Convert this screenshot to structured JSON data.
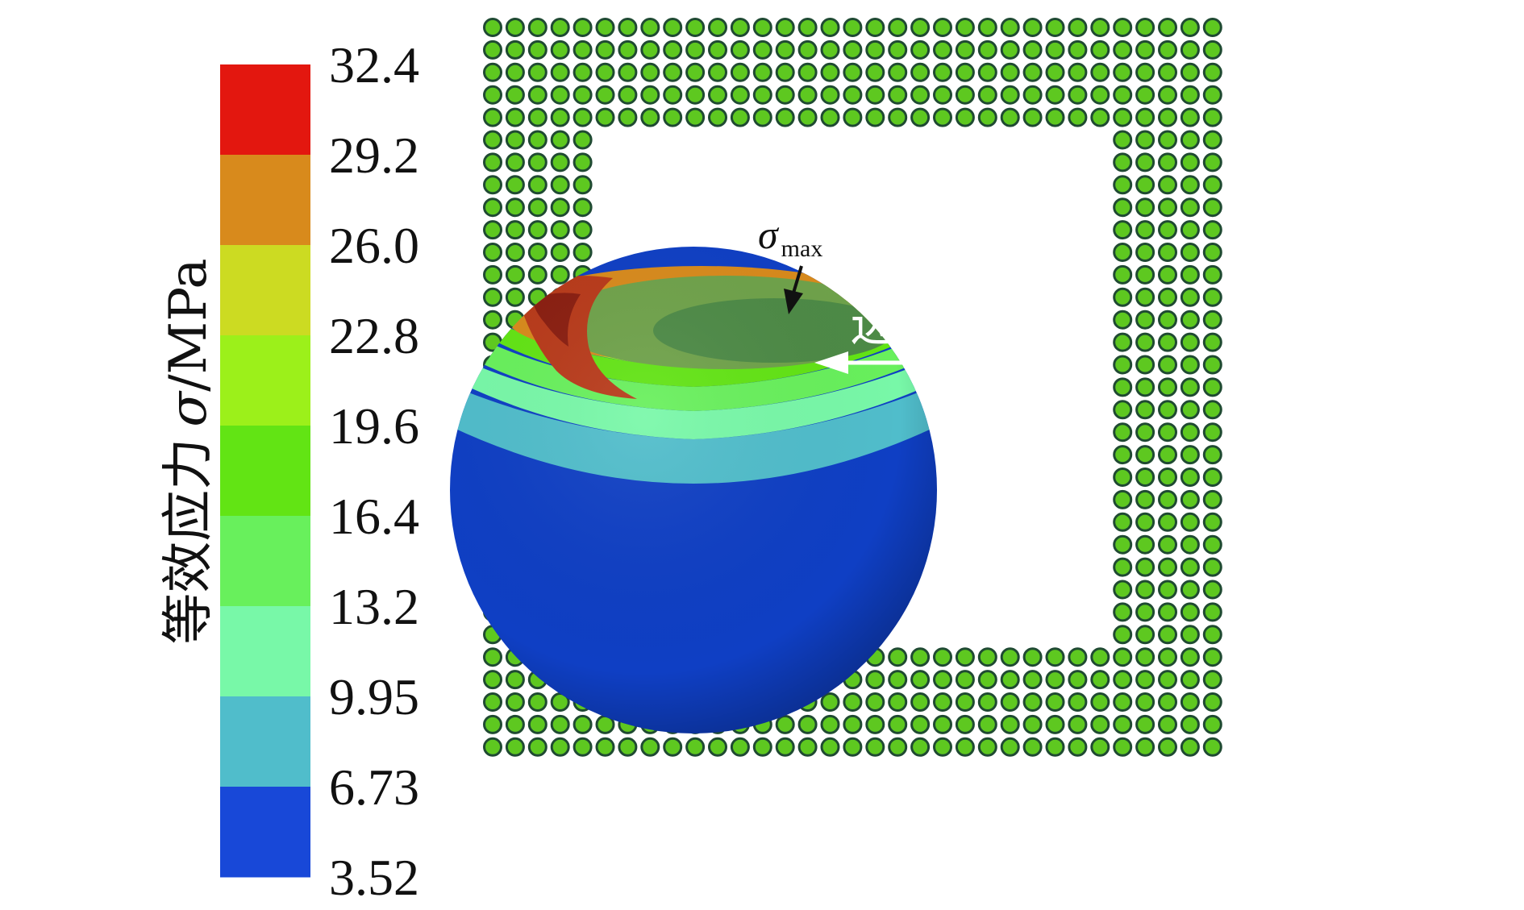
{
  "colorbar": {
    "title_cjk": "等效应力",
    "title_symbol": "σ",
    "title_unit": "/MPa",
    "ticks": [
      "32.4",
      "29.2",
      "26.0",
      "22.8",
      "19.6",
      "16.4",
      "13.2",
      "9.95",
      "6.73",
      "3.52"
    ],
    "bands": [
      {
        "from": "29.2",
        "to": "32.4",
        "color": "#e3170f"
      },
      {
        "from": "26.0",
        "to": "29.2",
        "color": "#d88a1c"
      },
      {
        "from": "22.8",
        "to": "26.0",
        "color": "#ccdb22"
      },
      {
        "from": "19.6",
        "to": "22.8",
        "color": "#9cf01a"
      },
      {
        "from": "16.4",
        "to": "19.6",
        "color": "#62e414"
      },
      {
        "from": "13.2",
        "to": "16.4",
        "color": "#68f05c"
      },
      {
        "from": "9.95",
        "to": "13.2",
        "color": "#78f8a8"
      },
      {
        "from": "6.73",
        "to": "9.95",
        "color": "#50bdcb"
      },
      {
        "from": "3.52",
        "to": "6.73",
        "color": "#1848d8"
      }
    ]
  },
  "annotations": {
    "sigma_symbol": "σ",
    "sigma_subscript": "max",
    "direction_label": "边角方向"
  },
  "array": {
    "ball_color": "#5ec820",
    "ball_rim_color": "#1f4a32"
  },
  "solder_ball": {
    "base_color": "#0f3fc4",
    "hotspot_color": "#b83a1a"
  }
}
